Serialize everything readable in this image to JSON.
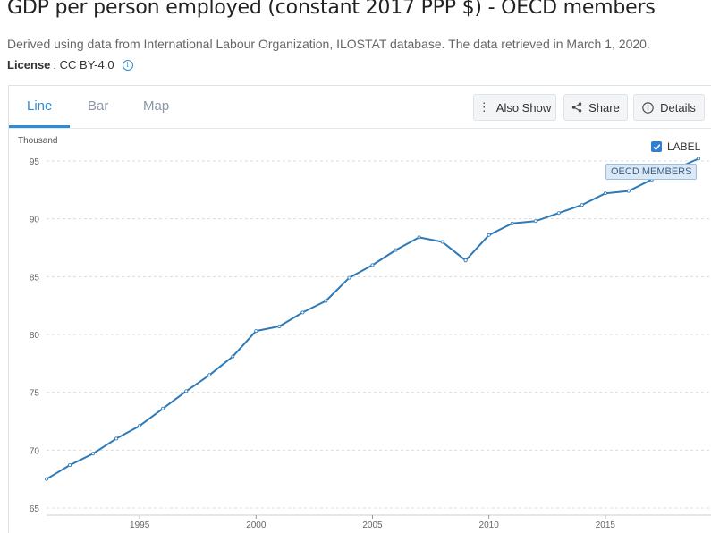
{
  "page": {
    "title": "GDP per person employed (constant 2017 PPP $) - OECD members",
    "subtitle": "Derived using data from International Labour Organization, ILOSTAT database. The data retrieved in March 1, 2020.",
    "license_label": "License",
    "license_value": ": CC BY-4.0"
  },
  "tabs": [
    {
      "label": "Line",
      "active": true
    },
    {
      "label": "Bar",
      "active": false
    },
    {
      "label": "Map",
      "active": false
    }
  ],
  "toolbar": {
    "also_show_label": "Also Show",
    "share_label": "Share",
    "details_label": "Details"
  },
  "legend": {
    "checkbox_label": "LABEL",
    "checked": true,
    "series_tag": "OECD MEMBERS"
  },
  "colors": {
    "accent": "#2f8bd6",
    "series": "#2e7ab8",
    "grid": "#dcdcdc"
  },
  "chart_data": {
    "type": "line",
    "ylabel": "Thousand",
    "ylim": [
      65,
      95
    ],
    "yticks": [
      65,
      70,
      75,
      80,
      85,
      90,
      95
    ],
    "xlim": [
      1991,
      2019
    ],
    "xticks": [
      1995,
      2000,
      2005,
      2010,
      2015
    ],
    "grid": true,
    "series": [
      {
        "name": "OECD MEMBERS",
        "x": [
          1991,
          1992,
          1993,
          1994,
          1995,
          1996,
          1997,
          1998,
          1999,
          2000,
          2001,
          2002,
          2003,
          2004,
          2005,
          2006,
          2007,
          2008,
          2009,
          2010,
          2011,
          2012,
          2013,
          2014,
          2015,
          2016,
          2017,
          2018,
          2019
        ],
        "values": [
          67.5,
          68.7,
          69.7,
          71.0,
          72.1,
          73.6,
          75.1,
          76.5,
          78.1,
          80.3,
          80.7,
          81.9,
          82.9,
          84.9,
          86.0,
          87.3,
          88.4,
          88.0,
          86.4,
          88.6,
          89.6,
          89.8,
          90.5,
          91.2,
          92.2,
          92.4,
          93.4,
          94.3,
          95.2
        ]
      }
    ]
  }
}
